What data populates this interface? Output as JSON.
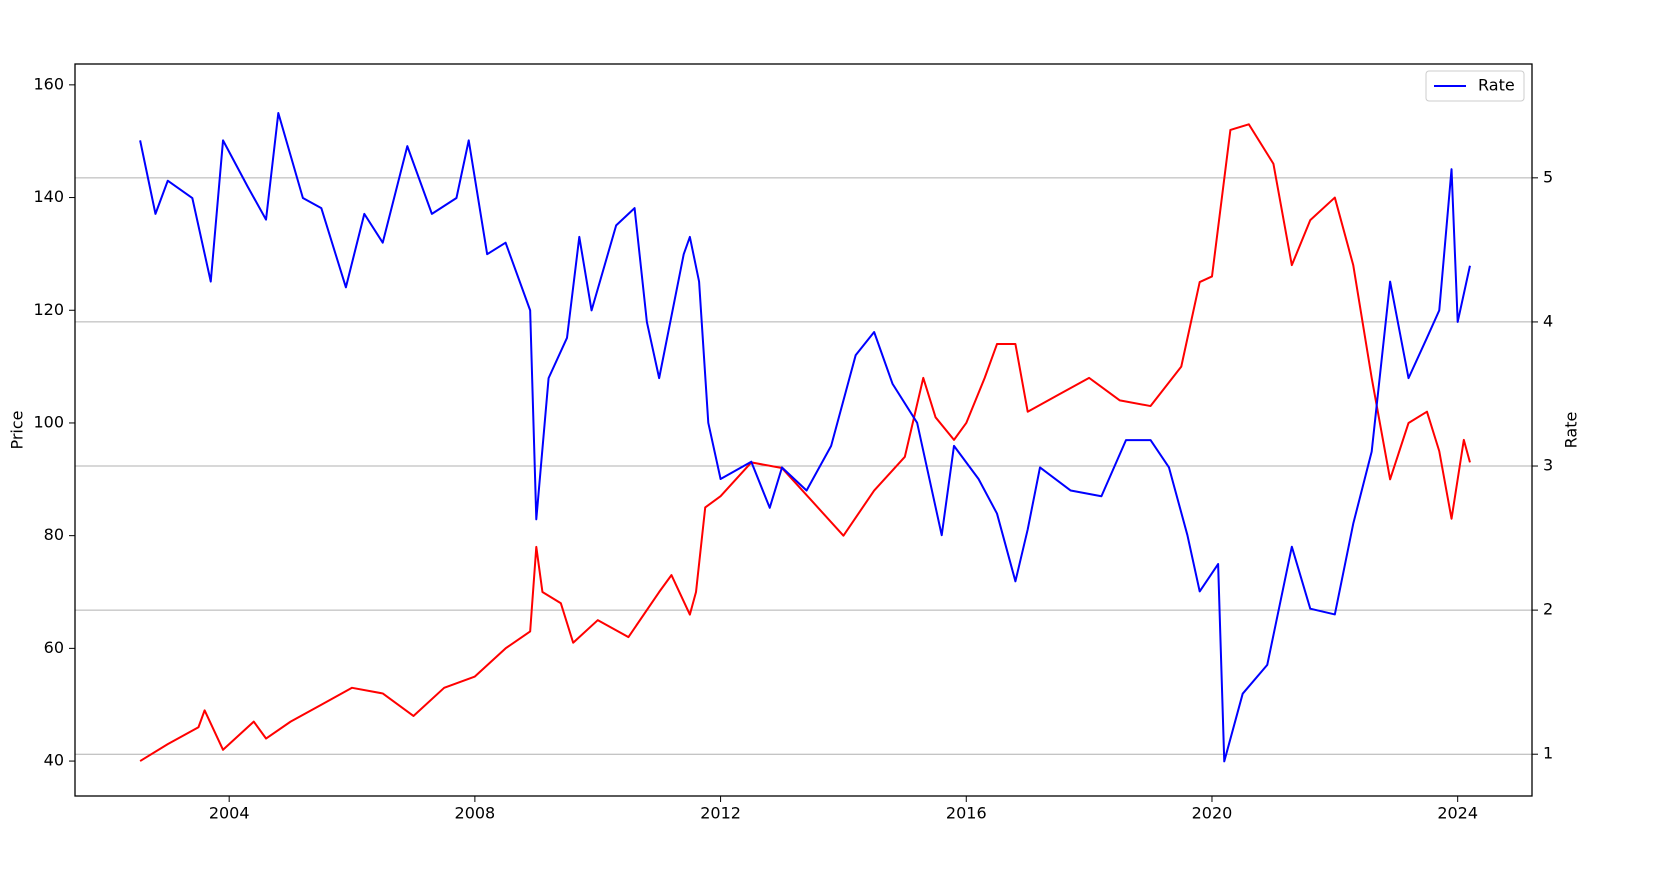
{
  "chart_data": {
    "type": "line",
    "ylabel": "Price",
    "y2label": "Rate",
    "xlim": [
      2001.49,
      2025.21
    ],
    "xticks": [
      2004,
      2008,
      2012,
      2016,
      2020,
      2024
    ],
    "ylim": [
      33.8,
      163.7
    ],
    "yticks": [
      40,
      60,
      80,
      100,
      120,
      140,
      160
    ],
    "y2lim": [
      0.71,
      5.79
    ],
    "y2ticks": [
      1,
      2,
      3,
      4,
      5
    ],
    "grid": "y2",
    "legend": "upper right",
    "series": [
      {
        "color": "#ff0000",
        "x": [
          2002.55,
          2003.0,
          2003.5,
          2003.6,
          2003.9,
          2004.4,
          2004.6,
          2005.0,
          2005.5,
          2006.0,
          2006.5,
          2007.0,
          2007.5,
          2008.0,
          2008.5,
          2008.9,
          2009.0,
          2009.1,
          2009.4,
          2009.6,
          2010.0,
          2010.5,
          2011.0,
          2011.2,
          2011.5,
          2011.6,
          2011.75,
          2012.0,
          2012.5,
          2013.0,
          2013.5,
          2014.0,
          2014.5,
          2015.0,
          2015.3,
          2015.5,
          2015.8,
          2016.0,
          2016.3,
          2016.5,
          2016.8,
          2017.0,
          2017.5,
          2018.0,
          2018.5,
          2019.0,
          2019.5,
          2019.8,
          2020.0,
          2020.3,
          2020.6,
          2021.0,
          2021.3,
          2021.6,
          2022.0,
          2022.3,
          2022.6,
          2022.9,
          2023.2,
          2023.5,
          2023.7,
          2023.9,
          2024.1,
          2024.2
        ],
        "values": [
          40,
          43,
          46,
          49,
          42,
          47,
          44,
          47,
          50,
          53,
          52,
          48,
          53,
          55,
          60,
          63,
          78,
          70,
          68,
          61,
          65,
          62,
          70,
          73,
          66,
          70,
          85,
          87,
          93,
          92,
          86,
          80,
          88,
          94,
          108,
          101,
          97,
          100,
          108,
          114,
          114,
          102,
          105,
          108,
          104,
          103,
          110,
          125,
          126,
          152,
          153,
          146,
          128,
          136,
          140,
          128,
          108,
          90,
          100,
          102,
          95,
          83,
          97,
          93
        ]
      },
      {
        "name": "Rate",
        "color": "#0000ff",
        "axis": "y2",
        "x": [
          2002.55,
          2002.8,
          2003.0,
          2003.4,
          2003.7,
          2003.9,
          2004.3,
          2004.6,
          2004.8,
          2005.2,
          2005.5,
          2005.9,
          2006.2,
          2006.5,
          2006.9,
          2007.3,
          2007.7,
          2007.9,
          2008.2,
          2008.5,
          2008.9,
          2009.0,
          2009.2,
          2009.5,
          2009.7,
          2009.9,
          2010.3,
          2010.6,
          2010.8,
          2011.0,
          2011.4,
          2011.5,
          2011.65,
          2011.8,
          2012.0,
          2012.5,
          2012.8,
          2013.0,
          2013.4,
          2013.8,
          2014.2,
          2014.5,
          2014.8,
          2015.2,
          2015.6,
          2015.8,
          2016.2,
          2016.5,
          2016.8,
          2017.0,
          2017.2,
          2017.7,
          2018.2,
          2018.6,
          2019.0,
          2019.3,
          2019.6,
          2019.8,
          2020.1,
          2020.2,
          2020.5,
          2020.9,
          2021.3,
          2021.6,
          2022.0,
          2022.3,
          2022.6,
          2022.9,
          2023.2,
          2023.5,
          2023.7,
          2023.9,
          2024.0,
          2024.2
        ],
        "values": [
          5.26,
          4.75,
          4.98,
          4.86,
          4.28,
          5.26,
          4.94,
          4.71,
          5.45,
          4.86,
          4.79,
          4.24,
          4.75,
          4.55,
          5.22,
          4.75,
          4.86,
          5.26,
          4.47,
          4.55,
          4.08,
          2.63,
          3.61,
          3.89,
          4.59,
          4.08,
          4.67,
          4.79,
          4.0,
          3.61,
          4.47,
          4.59,
          4.28,
          3.3,
          2.91,
          3.03,
          2.71,
          2.99,
          2.83,
          3.14,
          3.77,
          3.93,
          3.57,
          3.3,
          2.52,
          3.14,
          2.91,
          2.67,
          2.2,
          2.56,
          2.99,
          2.83,
          2.79,
          3.18,
          3.18,
          2.99,
          2.52,
          2.13,
          2.32,
          0.95,
          1.42,
          1.62,
          2.44,
          2.01,
          1.97,
          2.6,
          3.1,
          4.28,
          3.61,
          3.89,
          4.08,
          5.06,
          4.0,
          4.39
        ]
      }
    ]
  }
}
